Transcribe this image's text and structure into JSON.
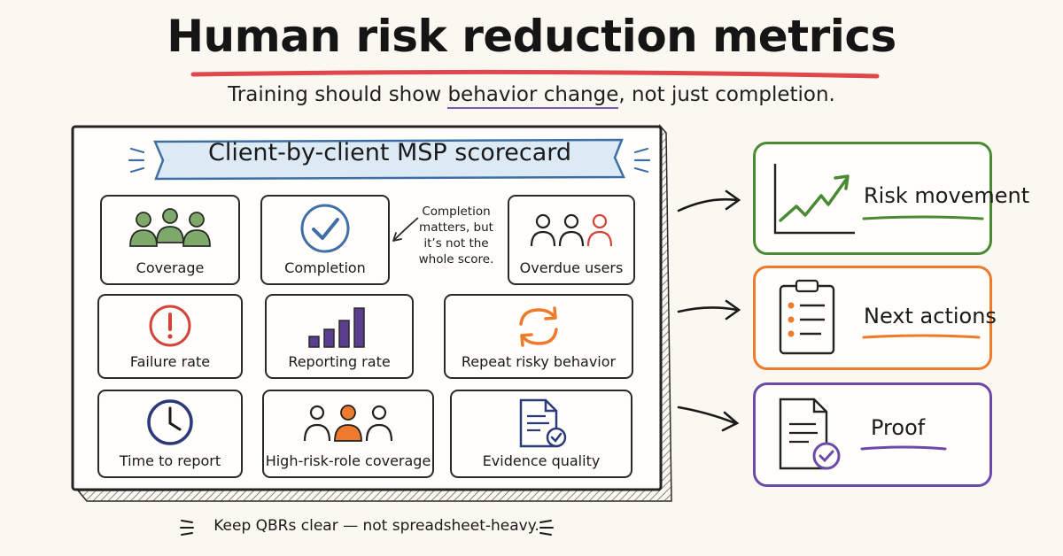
{
  "header": {
    "title": "Human risk reduction metrics",
    "subtitle_before": "Training should show ",
    "subtitle_emphasis": "behavior change",
    "subtitle_after": ", not just completion."
  },
  "scorecard": {
    "banner": "Client-by-client MSP scorecard",
    "note": [
      "Completion",
      "matters, but",
      "it’s not the",
      "whole score."
    ],
    "metrics": [
      {
        "label": "Coverage",
        "icon": "group-icon",
        "color": "#7fa86b"
      },
      {
        "label": "Completion",
        "icon": "check-circle-icon",
        "color": "#3f6fa8"
      },
      {
        "label": "Overdue users",
        "icon": "users-outline-icon",
        "color": "#d2453a"
      },
      {
        "label": "Failure rate",
        "icon": "alert-circle-icon",
        "color": "#d2453a"
      },
      {
        "label": "Reporting rate",
        "icon": "bar-chart-icon",
        "color": "#5b3e8f"
      },
      {
        "label": "Repeat risky behavior",
        "icon": "repeat-arrows-icon",
        "color": "#ee7a2c"
      },
      {
        "label": "Time to report",
        "icon": "clock-icon",
        "color": "#2c3a7a"
      },
      {
        "label": "High-risk-role coverage",
        "icon": "highlighted-person-icon",
        "color": "#ee7a2c"
      },
      {
        "label": "Evidence quality",
        "icon": "verified-document-icon",
        "color": "#2c3a7a"
      }
    ]
  },
  "outcomes": [
    {
      "label": "Risk movement",
      "icon": "trend-up-chart-icon",
      "color": "#4a8a34"
    },
    {
      "label": "Next actions",
      "icon": "clipboard-checklist-icon",
      "color": "#ee7a2c"
    },
    {
      "label": "Proof",
      "icon": "verified-document-icon",
      "color": "#6b4aa8"
    }
  ],
  "footer": "Keep QBRs clear — not spreadsheet-heavy."
}
